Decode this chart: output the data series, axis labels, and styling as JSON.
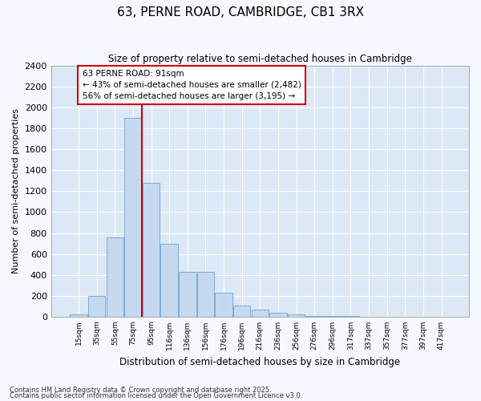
{
  "title1": "63, PERNE ROAD, CAMBRIDGE, CB1 3RX",
  "title2": "Size of property relative to semi-detached houses in Cambridge",
  "xlabel": "Distribution of semi-detached houses by size in Cambridge",
  "ylabel": "Number of semi-detached properties",
  "footnote1": "Contains HM Land Registry data © Crown copyright and database right 2025.",
  "footnote2": "Contains public sector information licensed under the Open Government Licence v3.0.",
  "bar_color": "#c5d8f0",
  "bar_edge_color": "#7aadd4",
  "background_color": "#dce8f5",
  "fig_background": "#f5f8ff",
  "grid_color": "#ffffff",
  "annotation_box_color": "#cc0000",
  "vline_color": "#cc0000",
  "categories": [
    "15sqm",
    "35sqm",
    "55sqm",
    "75sqm",
    "95sqm",
    "116sqm",
    "136sqm",
    "156sqm",
    "176sqm",
    "196sqm",
    "216sqm",
    "236sqm",
    "256sqm",
    "276sqm",
    "296sqm",
    "317sqm",
    "337sqm",
    "357sqm",
    "377sqm",
    "397sqm",
    "417sqm"
  ],
  "values": [
    20,
    200,
    760,
    1900,
    1280,
    700,
    430,
    430,
    230,
    110,
    65,
    35,
    25,
    10,
    5,
    5,
    0,
    0,
    0,
    0,
    0
  ],
  "vline_x": 3.5,
  "ylim": [
    0,
    2400
  ],
  "yticks": [
    0,
    200,
    400,
    600,
    800,
    1000,
    1200,
    1400,
    1600,
    1800,
    2000,
    2200,
    2400
  ],
  "annotation_text": "63 PERNE ROAD: 91sqm\n← 43% of semi-detached houses are smaller (2,482)\n56% of semi-detached houses are larger (3,195) →"
}
